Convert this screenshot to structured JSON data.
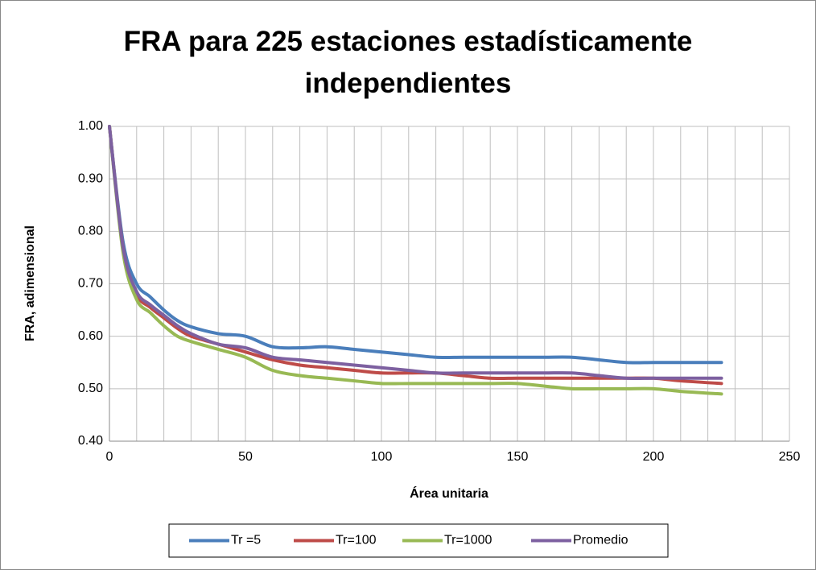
{
  "chart_data": {
    "type": "line",
    "title": "FRA para 225 estaciones estadísticamente independientes",
    "x_label": "Área unitaria",
    "y_label": "FRA, adimensional",
    "x": [
      0,
      5,
      10,
      15,
      20,
      25,
      30,
      40,
      50,
      60,
      70,
      80,
      90,
      100,
      110,
      120,
      130,
      140,
      150,
      160,
      170,
      180,
      190,
      200,
      210,
      225
    ],
    "series": [
      {
        "name": "Tr =5",
        "color": "#4a7ebb",
        "values": [
          1.0,
          0.78,
          0.7,
          0.675,
          0.65,
          0.63,
          0.618,
          0.605,
          0.6,
          0.58,
          0.578,
          0.58,
          0.575,
          0.57,
          0.565,
          0.56,
          0.56,
          0.56,
          0.56,
          0.56,
          0.56,
          0.555,
          0.55,
          0.55,
          0.55,
          0.55
        ]
      },
      {
        "name": "Tr=100",
        "color": "#be4b48",
        "values": [
          1.0,
          0.77,
          0.68,
          0.655,
          0.635,
          0.615,
          0.6,
          0.585,
          0.57,
          0.555,
          0.545,
          0.54,
          0.535,
          0.53,
          0.53,
          0.53,
          0.525,
          0.52,
          0.52,
          0.52,
          0.52,
          0.52,
          0.52,
          0.52,
          0.515,
          0.51
        ]
      },
      {
        "name": "Tr=1000",
        "color": "#98b954",
        "values": [
          1.0,
          0.76,
          0.67,
          0.645,
          0.62,
          0.6,
          0.59,
          0.575,
          0.56,
          0.535,
          0.525,
          0.52,
          0.515,
          0.51,
          0.51,
          0.51,
          0.51,
          0.51,
          0.51,
          0.505,
          0.5,
          0.5,
          0.5,
          0.5,
          0.495,
          0.49
        ]
      },
      {
        "name": "Promedio",
        "color": "#7d60a0",
        "values": [
          1.0,
          0.77,
          0.685,
          0.66,
          0.64,
          0.62,
          0.605,
          0.585,
          0.578,
          0.56,
          0.555,
          0.55,
          0.545,
          0.54,
          0.535,
          0.53,
          0.53,
          0.53,
          0.53,
          0.53,
          0.53,
          0.525,
          0.52,
          0.52,
          0.52,
          0.52
        ]
      }
    ],
    "xlim": [
      0,
      250
    ],
    "xticks": [
      0,
      50,
      100,
      150,
      200,
      250
    ],
    "xminorticks": [
      10,
      20,
      30,
      40,
      60,
      70,
      80,
      90,
      110,
      120,
      130,
      140,
      160,
      170,
      180,
      190,
      210,
      220,
      230,
      240
    ],
    "ylim": [
      0.4,
      1.0
    ],
    "yticks": [
      {
        "value": 0.4,
        "label": "0.40"
      },
      {
        "value": 0.5,
        "label": "0.50"
      },
      {
        "value": 0.6,
        "label": "0.60"
      },
      {
        "value": 0.7,
        "label": "0.70"
      },
      {
        "value": 0.8,
        "label": "0.80"
      },
      {
        "value": 0.9,
        "label": "0.90"
      },
      {
        "value": 1.0,
        "label": "1.00"
      }
    ],
    "grid": true,
    "legend": "bottom"
  }
}
